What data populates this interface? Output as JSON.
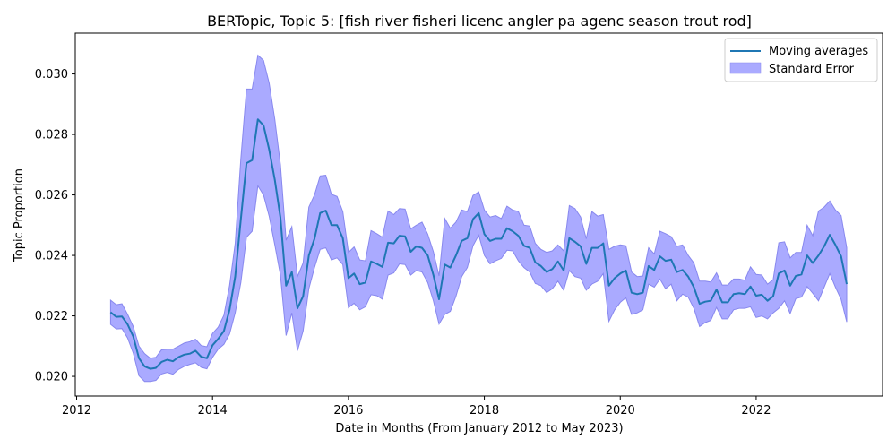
{
  "chart_data": {
    "type": "line",
    "title": "BERTopic, Topic 5: [fish river fisheri licenc angler pa agenc season trout rod]",
    "xlabel": "Date in Months (From January 2012 to May 2023)",
    "ylabel": "Topic Proportion",
    "xlim": [
      2011.98,
      2023.86
    ],
    "ylim": [
      0.01935,
      0.03135
    ],
    "xticks": [
      2012,
      2014,
      2016,
      2018,
      2020,
      2022
    ],
    "xtick_labels": [
      "2012",
      "2014",
      "2016",
      "2018",
      "2020",
      "2022"
    ],
    "yticks": [
      0.02,
      0.022,
      0.024,
      0.026,
      0.028,
      0.03
    ],
    "ytick_labels": [
      "0.020",
      "0.022",
      "0.024",
      "0.026",
      "0.028",
      "0.030"
    ],
    "grid": false,
    "legend_position": "top-right",
    "colors": {
      "line": "#1f77b4",
      "band_fill": "#aaaaff",
      "band_edge": "#8888ee"
    },
    "series": [
      {
        "name": "Moving averages",
        "x": [
          2012.5,
          2012.583,
          2012.667,
          2012.75,
          2012.833,
          2012.917,
          2013,
          2013.083,
          2013.167,
          2013.25,
          2013.333,
          2013.417,
          2013.5,
          2013.583,
          2013.667,
          2013.75,
          2013.833,
          2013.917,
          2014,
          2014.083,
          2014.167,
          2014.25,
          2014.333,
          2014.417,
          2014.5,
          2014.583,
          2014.667,
          2014.75,
          2014.833,
          2014.917,
          2015,
          2015.083,
          2015.167,
          2015.25,
          2015.333,
          2015.417,
          2015.5,
          2015.583,
          2015.667,
          2015.75,
          2015.833,
          2015.917,
          2016,
          2016.083,
          2016.167,
          2016.25,
          2016.333,
          2016.417,
          2016.5,
          2016.583,
          2016.667,
          2016.75,
          2016.833,
          2016.917,
          2017,
          2017.083,
          2017.167,
          2017.25,
          2017.333,
          2017.417,
          2017.5,
          2017.583,
          2017.667,
          2017.75,
          2017.833,
          2017.917,
          2018,
          2018.083,
          2018.167,
          2018.25,
          2018.333,
          2018.417,
          2018.5,
          2018.583,
          2018.667,
          2018.75,
          2018.833,
          2018.917,
          2019,
          2019.083,
          2019.167,
          2019.25,
          2019.333,
          2019.417,
          2019.5,
          2019.583,
          2019.667,
          2019.75,
          2019.833,
          2019.917,
          2020,
          2020.083,
          2020.167,
          2020.25,
          2020.333,
          2020.417,
          2020.5,
          2020.583,
          2020.667,
          2020.75,
          2020.833,
          2020.917,
          2021,
          2021.083,
          2021.167,
          2021.25,
          2021.333,
          2021.417,
          2021.5,
          2021.583,
          2021.667,
          2021.75,
          2021.833,
          2021.917,
          2022,
          2022.083,
          2022.167,
          2022.25,
          2022.333,
          2022.417,
          2022.5,
          2022.583,
          2022.667,
          2022.75,
          2022.833,
          2022.917,
          2023,
          2023.083,
          2023.167,
          2023.25,
          2023.333
        ],
        "values": [
          0.02212,
          0.02197,
          0.02198,
          0.02172,
          0.02132,
          0.0206,
          0.02033,
          0.02025,
          0.02028,
          0.02048,
          0.02055,
          0.0205,
          0.02064,
          0.02072,
          0.02075,
          0.02085,
          0.02065,
          0.0206,
          0.02103,
          0.02124,
          0.0215,
          0.0222,
          0.0233,
          0.0252,
          0.02705,
          0.02715,
          0.0285,
          0.0283,
          0.0275,
          0.0265,
          0.02525,
          0.023,
          0.02345,
          0.02225,
          0.02265,
          0.024,
          0.02455,
          0.0254,
          0.02548,
          0.025,
          0.025,
          0.02457,
          0.02325,
          0.0234,
          0.02305,
          0.0231,
          0.0238,
          0.02372,
          0.02362,
          0.02442,
          0.0244,
          0.02465,
          0.02463,
          0.02412,
          0.0243,
          0.02425,
          0.024,
          0.02335,
          0.02255,
          0.0237,
          0.0236,
          0.024,
          0.02448,
          0.02457,
          0.0252,
          0.0254,
          0.0247,
          0.02448,
          0.02455,
          0.02455,
          0.0249,
          0.0248,
          0.02465,
          0.02432,
          0.02425,
          0.02377,
          0.02365,
          0.02345,
          0.02355,
          0.0238,
          0.0235,
          0.02457,
          0.02445,
          0.0243,
          0.02372,
          0.02425,
          0.02425,
          0.0244,
          0.023,
          0.02325,
          0.0234,
          0.0235,
          0.02277,
          0.02272,
          0.02277,
          0.02365,
          0.02352,
          0.02397,
          0.02382,
          0.02386,
          0.02345,
          0.02352,
          0.0233,
          0.02295,
          0.0224,
          0.02247,
          0.0225,
          0.02287,
          0.02245,
          0.02245,
          0.02272,
          0.02275,
          0.02272,
          0.02297,
          0.02267,
          0.0227,
          0.0225,
          0.02265,
          0.0234,
          0.0235,
          0.023,
          0.02332,
          0.02337,
          0.024,
          0.02375,
          0.024,
          0.0243,
          0.02468,
          0.02435,
          0.02397,
          0.02305
        ],
        "lower": [
          0.02172,
          0.02157,
          0.02158,
          0.02127,
          0.02077,
          0.02002,
          0.01983,
          0.01983,
          0.01987,
          0.02008,
          0.02013,
          0.02007,
          0.02023,
          0.02033,
          0.0204,
          0.02045,
          0.0203,
          0.02025,
          0.02063,
          0.0209,
          0.02106,
          0.0214,
          0.0221,
          0.0231,
          0.0246,
          0.0248,
          0.0263,
          0.026,
          0.0253,
          0.02435,
          0.02335,
          0.02135,
          0.0221,
          0.02085,
          0.0215,
          0.0229,
          0.0236,
          0.0242,
          0.02425,
          0.02385,
          0.02392,
          0.0237,
          0.02227,
          0.02242,
          0.0222,
          0.0223,
          0.0227,
          0.02267,
          0.02255,
          0.02335,
          0.02342,
          0.02372,
          0.0237,
          0.02335,
          0.0235,
          0.02345,
          0.0231,
          0.0225,
          0.02173,
          0.02205,
          0.02215,
          0.02265,
          0.0233,
          0.0236,
          0.02432,
          0.02467,
          0.024,
          0.02372,
          0.02382,
          0.0239,
          0.02417,
          0.02415,
          0.02382,
          0.0236,
          0.02345,
          0.02307,
          0.023,
          0.02277,
          0.0229,
          0.02315,
          0.02285,
          0.0235,
          0.0233,
          0.02325,
          0.02285,
          0.02305,
          0.02315,
          0.0234,
          0.02182,
          0.0222,
          0.02245,
          0.0226,
          0.02205,
          0.0221,
          0.0222,
          0.02305,
          0.02295,
          0.02322,
          0.0229,
          0.02305,
          0.0225,
          0.02272,
          0.02262,
          0.02225,
          0.02165,
          0.02178,
          0.02185,
          0.02228,
          0.0219,
          0.0219,
          0.0222,
          0.02225,
          0.02225,
          0.0223,
          0.02195,
          0.022,
          0.0219,
          0.0221,
          0.02225,
          0.0225,
          0.02208,
          0.02257,
          0.02262,
          0.02297,
          0.02275,
          0.0225,
          0.02295,
          0.0234,
          0.02295,
          0.02255,
          0.0218
        ],
        "upper": [
          0.02252,
          0.02237,
          0.0224,
          0.02205,
          0.02165,
          0.021,
          0.02075,
          0.0206,
          0.02063,
          0.02088,
          0.0209,
          0.0209,
          0.021,
          0.0211,
          0.02115,
          0.02123,
          0.02102,
          0.02098,
          0.02142,
          0.02163,
          0.02202,
          0.023,
          0.0244,
          0.0272,
          0.0295,
          0.0295,
          0.03062,
          0.03045,
          0.0297,
          0.0285,
          0.027,
          0.0245,
          0.02495,
          0.0233,
          0.02375,
          0.0256,
          0.026,
          0.02663,
          0.02665,
          0.02602,
          0.02595,
          0.02545,
          0.0241,
          0.02428,
          0.02385,
          0.02382,
          0.02482,
          0.02472,
          0.0246,
          0.02547,
          0.02535,
          0.02555,
          0.02553,
          0.02488,
          0.025,
          0.0251,
          0.0247,
          0.02412,
          0.02332,
          0.02522,
          0.0249,
          0.0251,
          0.0255,
          0.02545,
          0.02598,
          0.0261,
          0.0255,
          0.02527,
          0.02532,
          0.02522,
          0.02563,
          0.0255,
          0.02545,
          0.025,
          0.02497,
          0.0244,
          0.0242,
          0.0241,
          0.02415,
          0.02435,
          0.02415,
          0.02565,
          0.02555,
          0.02527,
          0.02455,
          0.02545,
          0.0253,
          0.02535,
          0.0242,
          0.0243,
          0.02435,
          0.02432,
          0.02345,
          0.0233,
          0.02332,
          0.02425,
          0.02405,
          0.0248,
          0.02472,
          0.02462,
          0.0243,
          0.02435,
          0.024,
          0.02375,
          0.02315,
          0.02315,
          0.02312,
          0.02342,
          0.02302,
          0.02302,
          0.02322,
          0.02322,
          0.02318,
          0.02362,
          0.02337,
          0.02335,
          0.02305,
          0.0232,
          0.02442,
          0.02445,
          0.02392,
          0.0241,
          0.0241,
          0.025,
          0.02465,
          0.02547,
          0.0256,
          0.0258,
          0.0255,
          0.02532,
          0.02425
        ]
      }
    ],
    "legend": [
      {
        "label": "Moving averages",
        "kind": "line"
      },
      {
        "label": "Standard Error",
        "kind": "band"
      }
    ]
  }
}
